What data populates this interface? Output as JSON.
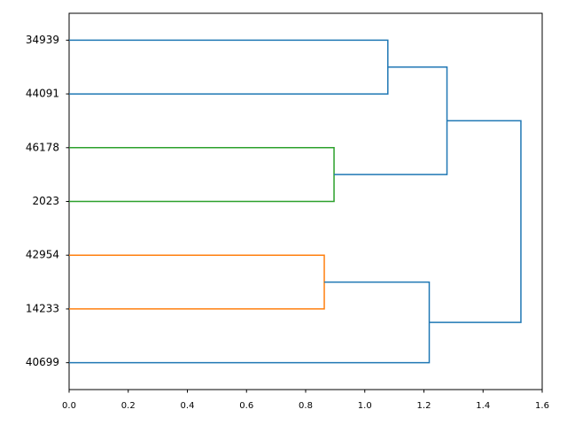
{
  "chart_data": {
    "type": "dendrogram",
    "orientation": "left",
    "leaves": [
      "34939",
      "44091",
      "46178",
      "2023",
      "42954",
      "14233",
      "40699"
    ],
    "links": [
      {
        "left": 0,
        "right": 1,
        "height": 1.078,
        "color": "#1f77b4"
      },
      {
        "left": 2,
        "right": 3,
        "height": 0.896,
        "color": "#2ca02c"
      },
      {
        "left": 4,
        "right": 5,
        "height": 0.863,
        "color": "#ff7f0e"
      },
      {
        "left": 7,
        "right": 8,
        "height": 1.278,
        "color": "#1f77b4"
      },
      {
        "left": 9,
        "right": 6,
        "height": 1.218,
        "color": "#1f77b4"
      },
      {
        "left": 10,
        "right": 11,
        "height": 1.528,
        "color": "#1f77b4"
      }
    ],
    "xlim": [
      0,
      1.6
    ],
    "xticks": [
      {
        "value": 0,
        "label": "0.0"
      },
      0.2,
      0.4,
      0.6,
      0.8,
      {
        "value": 1,
        "label": "1.0"
      },
      1.2,
      1.4,
      1.6
    ]
  }
}
